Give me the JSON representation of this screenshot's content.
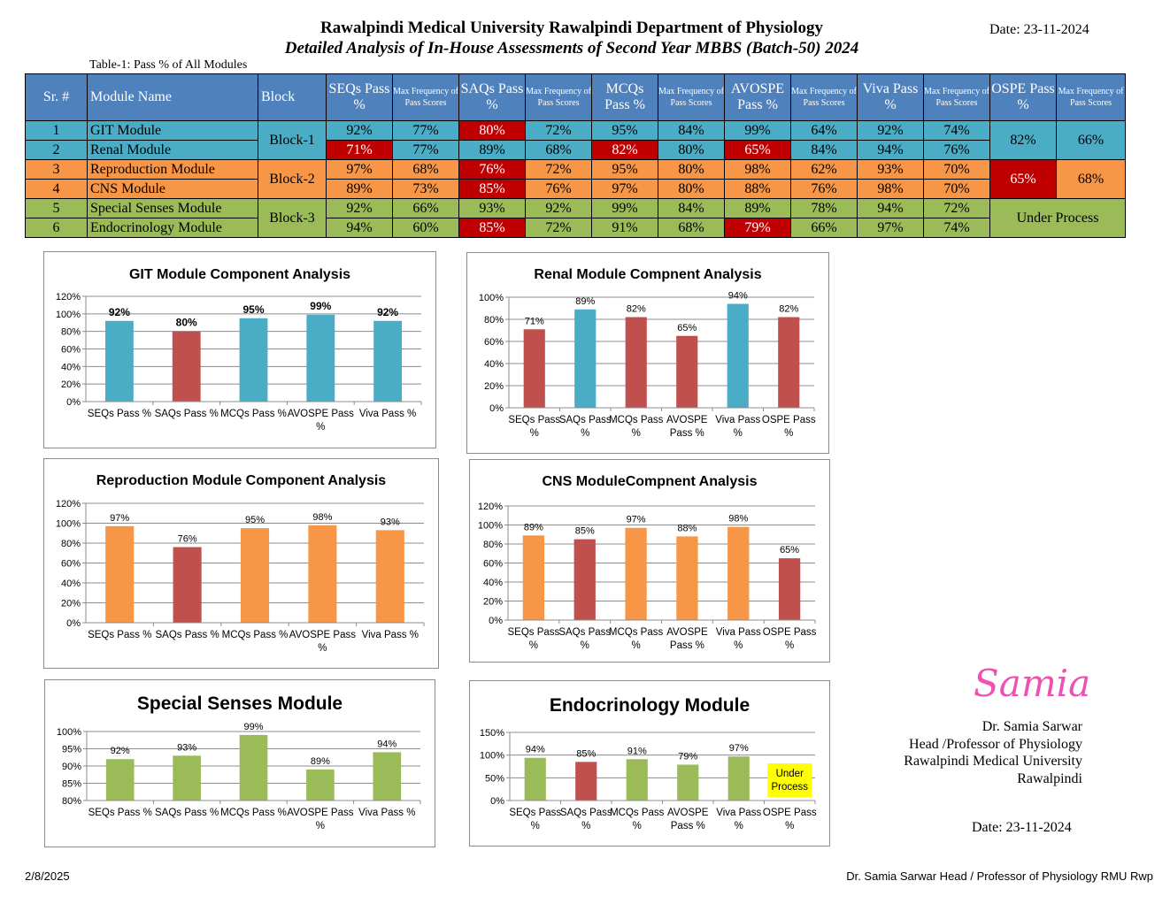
{
  "header": {
    "title": "Rawalpindi Medical University Rawalpindi Department of Physiology",
    "subtitle": "Detailed Analysis of In-House Assessments of Second Year MBBS (Batch-50) 2024",
    "date": "Date: 23-11-2024"
  },
  "table": {
    "caption": "Table-1: Pass % of All Modules",
    "headers": [
      "Sr. #",
      "Module Name",
      "Block",
      "SEQs Pass %",
      "Max Frequency of Pass Scores",
      "SAQs Pass %",
      "Max Frequency of Pass Scores",
      "MCQs Pass %",
      "Max Frequency of Pass Scores",
      "AVOSPE Pass %",
      "Max Frequency of Pass Scores",
      "Viva Pass %",
      "Max Frequency of Pass Scores",
      "OSPE Pass %",
      "Max Frequency of Pass Scores"
    ],
    "rows": [
      {
        "sr": "1",
        "name": "GIT Module",
        "cells": [
          "92%",
          "77%",
          "80%",
          "72%",
          "95%",
          "84%",
          "99%",
          "64%",
          "92%",
          "74%"
        ]
      },
      {
        "sr": "2",
        "name": "Renal Module",
        "cells": [
          "71%",
          "77%",
          "89%",
          "68%",
          "82%",
          "80%",
          "65%",
          "84%",
          "94%",
          "76%"
        ]
      },
      {
        "sr": "3",
        "name": "Reproduction Module",
        "cells": [
          "97%",
          "68%",
          "76%",
          "72%",
          "95%",
          "80%",
          "98%",
          "62%",
          "93%",
          "70%"
        ]
      },
      {
        "sr": "4",
        "name": "CNS Module",
        "cells": [
          "89%",
          "73%",
          "85%",
          "76%",
          "97%",
          "80%",
          "88%",
          "76%",
          "98%",
          "70%"
        ]
      },
      {
        "sr": "5",
        "name": "Special Senses Module",
        "cells": [
          "92%",
          "66%",
          "93%",
          "92%",
          "99%",
          "84%",
          "89%",
          "78%",
          "94%",
          "72%"
        ]
      },
      {
        "sr": "6",
        "name": "Endocrinology Module",
        "cells": [
          "94%",
          "60%",
          "85%",
          "72%",
          "91%",
          "68%",
          "79%",
          "66%",
          "97%",
          "74%"
        ]
      }
    ],
    "blocks": [
      "Block-1",
      "Block-2",
      "Block-3"
    ],
    "ospe": [
      {
        "pass": "82%",
        "freq": "66%"
      },
      {
        "pass": "65%",
        "freq": "68%"
      },
      {
        "merged": "Under Process"
      }
    ],
    "colors": {
      "block1": "#4bacc6",
      "block2": "#f79646",
      "block3": "#9bbb59",
      "low": "#c00000",
      "header": "#4f81bd"
    }
  },
  "chart_data": [
    {
      "type": "bar",
      "title": "GIT Module Component Analysis",
      "categories": [
        "SEQs Pass %",
        "SAQs Pass %",
        "MCQs Pass %",
        "AVOSPE Pass %",
        "Viva Pass %"
      ],
      "values": [
        92,
        80,
        95,
        99,
        92
      ],
      "colors": [
        "#4bacc6",
        "#c0504d",
        "#4bacc6",
        "#4bacc6",
        "#4bacc6"
      ],
      "labels": [
        "92%",
        "80%",
        "95%",
        "99%",
        "92%"
      ],
      "yticks": [
        "0%",
        "20%",
        "40%",
        "60%",
        "80%",
        "100%",
        "120%"
      ],
      "ylim": [
        0,
        120
      ]
    },
    {
      "type": "bar",
      "title": "Renal Module Compnent Analysis",
      "categories": [
        "SEQs Pass %",
        "SAQs Pass %",
        "MCQs Pass %",
        "AVOSPE Pass %",
        "Viva Pass %",
        "OSPE Pass %"
      ],
      "values": [
        71,
        89,
        82,
        65,
        94,
        82
      ],
      "colors": [
        "#c0504d",
        "#4bacc6",
        "#c0504d",
        "#c0504d",
        "#4bacc6",
        "#c0504d"
      ],
      "labels": [
        "71%",
        "89%",
        "82%",
        "65%",
        "94%",
        "82%"
      ],
      "yticks": [
        "0%",
        "20%",
        "40%",
        "60%",
        "80%",
        "100%"
      ],
      "ylim": [
        0,
        100
      ]
    },
    {
      "type": "bar",
      "title": "Reproduction Module Component Analysis",
      "categories": [
        "SEQs Pass %",
        "SAQs Pass %",
        "MCQs Pass %",
        "AVOSPE Pass %",
        "Viva Pass %"
      ],
      "values": [
        97,
        76,
        95,
        98,
        93
      ],
      "colors": [
        "#f79646",
        "#c0504d",
        "#f79646",
        "#f79646",
        "#f79646"
      ],
      "labels": [
        "97%",
        "76%",
        "95%",
        "98%",
        "93%"
      ],
      "yticks": [
        "0%",
        "20%",
        "40%",
        "60%",
        "80%",
        "100%",
        "120%"
      ],
      "ylim": [
        0,
        120
      ]
    },
    {
      "type": "bar",
      "title": "CNS ModuleCompnent Analysis",
      "categories": [
        "SEQs Pass %",
        "SAQs Pass %",
        "MCQs Pass %",
        "AVOSPE Pass %",
        "Viva Pass %",
        "OSPE Pass %"
      ],
      "values": [
        89,
        85,
        97,
        88,
        98,
        65
      ],
      "colors": [
        "#f79646",
        "#c0504d",
        "#f79646",
        "#f79646",
        "#f79646",
        "#c0504d"
      ],
      "labels": [
        "89%",
        "85%",
        "97%",
        "88%",
        "98%",
        "65%"
      ],
      "yticks": [
        "0%",
        "20%",
        "40%",
        "60%",
        "80%",
        "100%",
        "120%"
      ],
      "ylim": [
        0,
        120
      ]
    },
    {
      "type": "bar",
      "title": "Special Senses Module",
      "categories": [
        "SEQs Pass %",
        "SAQs Pass %",
        "MCQs Pass %",
        "AVOSPE Pass %",
        "Viva Pass %"
      ],
      "values": [
        92,
        93,
        99,
        89,
        94
      ],
      "colors": [
        "#9bbb59",
        "#9bbb59",
        "#9bbb59",
        "#9bbb59",
        "#9bbb59"
      ],
      "labels": [
        "92%",
        "93%",
        "99%",
        "89%",
        "94%"
      ],
      "yticks": [
        "80%",
        "85%",
        "90%",
        "95%",
        "100%"
      ],
      "ylim": [
        80,
        100
      ]
    },
    {
      "type": "bar",
      "title": "Endocrinology Module",
      "categories": [
        "SEQs Pass %",
        "SAQs Pass %",
        "MCQs Pass %",
        "AVOSPE Pass %",
        "Viva Pass %",
        "OSPE Pass %"
      ],
      "values": [
        94,
        85,
        91,
        79,
        97,
        null
      ],
      "colors": [
        "#9bbb59",
        "#c0504d",
        "#9bbb59",
        "#9bbb59",
        "#9bbb59",
        "#9bbb59"
      ],
      "labels": [
        "94%",
        "85%",
        "91%",
        "79%",
        "97%",
        ""
      ],
      "yticks": [
        "0%",
        "50%",
        "100%",
        "150%"
      ],
      "ylim": [
        0,
        150
      ],
      "annotation": "Under Process",
      "annotation_color": "#ffff00"
    }
  ],
  "signature": {
    "script": "Samia",
    "lines": [
      "Dr. Samia Sarwar",
      "Head /Professor of Physiology",
      "Rawalpindi Medical University",
      "Rawalpindi"
    ],
    "date": "Date: 23-11-2024"
  },
  "footer": {
    "left": "2/8/2025",
    "right": "Dr. Samia Sarwar Head / Professor of Physiology RMU Rwp"
  }
}
